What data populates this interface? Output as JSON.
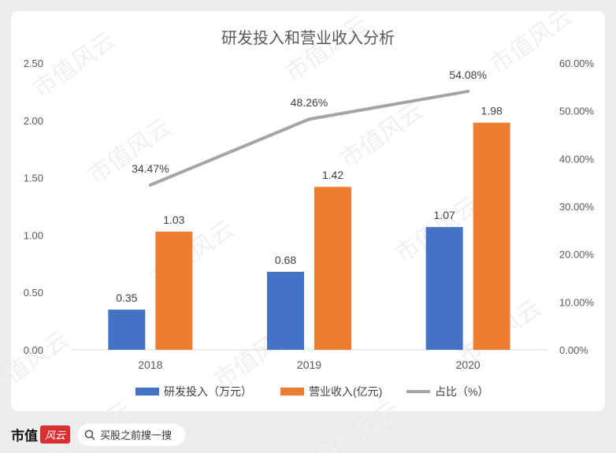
{
  "chart_data": {
    "type": "bar",
    "title": "研发投入和营业收入分析",
    "categories": [
      "2018",
      "2019",
      "2020"
    ],
    "series": [
      {
        "name": "研发投入（万元）",
        "type": "bar",
        "axis": "left",
        "color": "#4472c4",
        "values": [
          0.35,
          0.68,
          1.07
        ],
        "labels": [
          "0.35",
          "0.68",
          "1.07"
        ]
      },
      {
        "name": "营业收入(亿元)",
        "type": "bar",
        "axis": "left",
        "color": "#ed7d31",
        "values": [
          1.03,
          1.42,
          1.98
        ],
        "labels": [
          "1.03",
          "1.42",
          "1.98"
        ]
      },
      {
        "name": "占比（%）",
        "type": "line",
        "axis": "right",
        "color": "#a5a5a5",
        "values": [
          34.47,
          48.26,
          54.08
        ],
        "labels": [
          "34.47%",
          "48.26%",
          "54.08%"
        ]
      }
    ],
    "y_left": {
      "min": 0,
      "max": 2.5,
      "ticks": [
        "0.00",
        "0.50",
        "1.00",
        "1.50",
        "2.00",
        "2.50"
      ]
    },
    "y_right": {
      "min": 0,
      "max": 60,
      "ticks": [
        "0.00%",
        "10.00%",
        "20.00%",
        "30.00%",
        "40.00%",
        "50.00%",
        "60.00%"
      ]
    },
    "grid": false,
    "legend_position": "bottom"
  },
  "watermark": "市值风云",
  "footer": {
    "brand": "市值",
    "brand_badge": "风云",
    "search_placeholder": "买股之前搜一搜"
  }
}
